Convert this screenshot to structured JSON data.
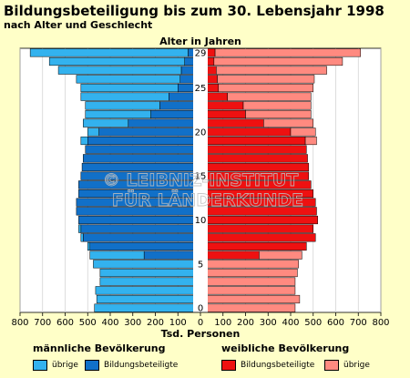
{
  "title": "Bildungsbeteiligung bis zum 30. Lebensjahr 1998",
  "subtitle": "nach Alter und Geschlecht",
  "watermark": [
    "© LEIBNIZ-INSTITUT",
    "FÜR LÄNDERKUNDE"
  ],
  "colors": {
    "male_other": "#33b2ee",
    "male_edu": "#1170c8",
    "female_edu": "#ee1111",
    "female_other": "#ff8a80",
    "background": "#ffffc8",
    "plot_bg": "#ffffff"
  },
  "legend": {
    "male_heading": "männliche Bevölkerung",
    "female_heading": "weibliche Bevölkerung",
    "male_other_label": "übrige",
    "male_edu_label": "Bildungsbeteiligte",
    "female_edu_label": "Bildungsbeteiligte",
    "female_other_label": "übrige"
  },
  "chart_data": {
    "type": "bar",
    "orientation": "horizontal",
    "layout": "population-pyramid",
    "ylabel": "Alter in Jahren",
    "xlabel": "Tsd. Personen",
    "xlim": [
      -800,
      800
    ],
    "xticks": [
      -800,
      -700,
      -600,
      -500,
      -400,
      -300,
      -200,
      -100,
      0,
      100,
      200,
      300,
      400,
      500,
      600,
      700,
      800
    ],
    "xtick_labels": [
      "800",
      "700",
      "600",
      "500",
      "400",
      "300",
      "200",
      "100",
      "0",
      "100",
      "200",
      "300",
      "400",
      "500",
      "600",
      "700",
      "800"
    ],
    "age_ticks": [
      0,
      5,
      10,
      15,
      20,
      25,
      29
    ],
    "ages": [
      0,
      1,
      2,
      3,
      4,
      5,
      6,
      7,
      8,
      9,
      10,
      11,
      12,
      13,
      14,
      15,
      16,
      17,
      18,
      19,
      20,
      21,
      22,
      23,
      24,
      25,
      26,
      27,
      28,
      29
    ],
    "series": [
      {
        "name": "männlich Bildungsbeteiligte",
        "side": "left",
        "values": [
          0,
          0,
          0,
          0,
          0,
          5,
          250,
          490,
          520,
          530,
          540,
          550,
          550,
          540,
          540,
          530,
          525,
          520,
          510,
          500,
          450,
          320,
          220,
          180,
          140,
          100,
          90,
          85,
          70,
          55
        ]
      },
      {
        "name": "männlich übrige",
        "side": "left",
        "values": [
          470,
          460,
          465,
          445,
          445,
          470,
          240,
          10,
          10,
          10,
          0,
          0,
          0,
          0,
          0,
          0,
          0,
          0,
          0,
          30,
          50,
          200,
          290,
          330,
          390,
          430,
          460,
          545,
          600,
          700
        ]
      },
      {
        "name": "weiblich Bildungsbeteiligte",
        "side": "right",
        "values": [
          0,
          0,
          0,
          0,
          0,
          5,
          260,
          470,
          510,
          500,
          520,
          515,
          510,
          500,
          490,
          480,
          480,
          475,
          470,
          465,
          400,
          280,
          200,
          190,
          120,
          80,
          75,
          70,
          60,
          65
        ]
      },
      {
        "name": "weiblich übrige",
        "side": "right",
        "values": [
          420,
          440,
          420,
          420,
          430,
          430,
          190,
          0,
          0,
          0,
          0,
          0,
          0,
          0,
          0,
          0,
          0,
          0,
          0,
          50,
          110,
          220,
          290,
          300,
          370,
          420,
          430,
          490,
          570,
          645
        ]
      }
    ]
  }
}
